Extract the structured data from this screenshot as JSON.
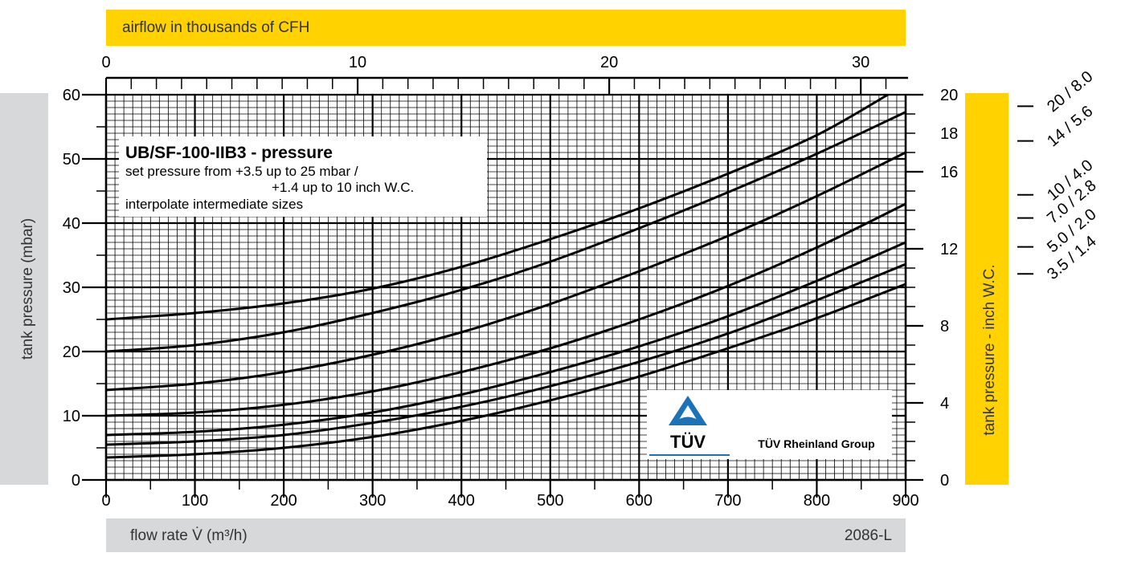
{
  "chart_data": {
    "type": "line",
    "title": "UB/SF-100-IIB3 - pressure",
    "info_lines": [
      "set pressure from  +3.5 up to 25 mbar /",
      "+1.4 up to 10 inch W.C.",
      "interpolate intermediate sizes"
    ],
    "xlabel": "flow rate V̇ (m³/h)",
    "ylabel": "tank pressure (mbar)",
    "x2label": "airflow in thousands of CFH",
    "y2label": "tank pressure  - inch W.C.",
    "code": "2086-L",
    "xlim": [
      0,
      900
    ],
    "ylim": [
      0,
      60
    ],
    "x_ticks": [
      0,
      100,
      200,
      300,
      400,
      500,
      600,
      700,
      800,
      900
    ],
    "y_ticks": [
      0,
      10,
      20,
      30,
      40,
      50,
      60
    ],
    "x2_ticks": [
      0,
      10,
      20,
      30
    ],
    "y2_ticks": [
      0,
      4,
      8,
      12,
      16,
      18,
      20
    ],
    "grid": true,
    "legend": "right",
    "colors": {
      "yellow": "#ffd200",
      "grey": "#d7d8da",
      "curve": "#000000",
      "tuv_blue": "#1a73b8"
    },
    "series": [
      {
        "name": "20 / 8.0",
        "x": [
          0,
          100,
          200,
          300,
          400,
          500,
          600,
          700,
          800,
          880
        ],
        "values": [
          25,
          26,
          27.5,
          29.8,
          33.2,
          37.5,
          42.3,
          47.7,
          53.7,
          60
        ]
      },
      {
        "name": "14 / 5.6",
        "x": [
          0,
          100,
          200,
          300,
          400,
          500,
          600,
          700,
          800,
          900
        ],
        "values": [
          20,
          21,
          23,
          26,
          29.6,
          34,
          39.2,
          44.8,
          50.8,
          57.3
        ]
      },
      {
        "name": "10 / 4.0",
        "x": [
          0,
          100,
          200,
          300,
          400,
          500,
          600,
          700,
          800,
          900
        ],
        "values": [
          14,
          15,
          16.8,
          19.5,
          23,
          27.4,
          32.5,
          38,
          44.2,
          51
        ]
      },
      {
        "name": "7.0 / 2.8",
        "x": [
          0,
          100,
          200,
          300,
          400,
          500,
          600,
          700,
          800,
          900
        ],
        "values": [
          10,
          10.5,
          11.7,
          13.8,
          16.8,
          20.5,
          25,
          30.2,
          36.2,
          43
        ]
      },
      {
        "name": "5.0 / 2.0",
        "x": [
          0,
          100,
          200,
          300,
          400,
          500,
          600,
          700,
          800,
          900
        ],
        "values": [
          7,
          7.5,
          8.6,
          10.5,
          13.3,
          16.8,
          20.8,
          25.5,
          31,
          37
        ]
      },
      {
        "name": "",
        "x": [
          0,
          100,
          200,
          300,
          400,
          500,
          600,
          700,
          800,
          900
        ],
        "values": [
          5.5,
          6,
          7,
          8.9,
          11.4,
          14.6,
          18.4,
          22.8,
          28,
          33.6
        ]
      },
      {
        "name": "3.5 / 1.4",
        "x": [
          0,
          100,
          200,
          300,
          400,
          500,
          600,
          700,
          800,
          900
        ],
        "values": [
          3.5,
          4,
          5,
          6.7,
          9.2,
          12.4,
          16.1,
          20.5,
          25.2,
          30.5
        ]
      }
    ],
    "legend_markers_y2": [
      19.4,
      17.6,
      14.8,
      13.6,
      12.1,
      10.7
    ],
    "logo": {
      "text": "TÜV",
      "subtitle": "TÜV Rheinland Group"
    }
  }
}
